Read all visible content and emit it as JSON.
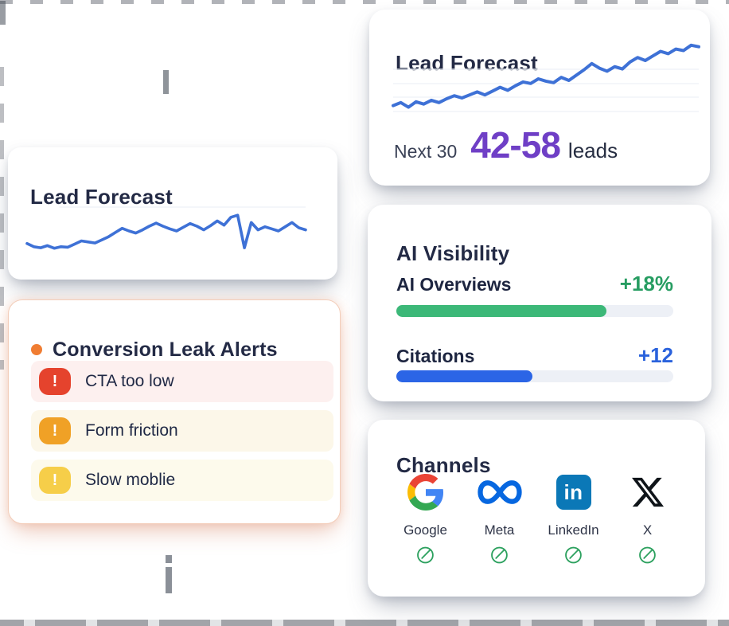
{
  "forecast_hero": {
    "title": "Lead Forecast",
    "next_label": "Next 30",
    "range_value": "42-58",
    "unit_label": "leads",
    "range_color": "#6f3fc6"
  },
  "forecast_mini": {
    "title": "Lead Forecast"
  },
  "alerts": {
    "title": "Conversion Leak Alerts",
    "bullet_color": "#f07d32",
    "items": [
      {
        "label": "CTA too low",
        "severity": "high",
        "icon": "exclamation-icon",
        "badge_color": "#e5432d",
        "row_bg": "#fdf0ef"
      },
      {
        "label": "Form friction",
        "severity": "medium",
        "icon": "exclamation-icon",
        "badge_color": "#f0a126",
        "row_bg": "#fcf7e9"
      },
      {
        "label": "Slow moblie",
        "severity": "low",
        "icon": "exclamation-icon",
        "badge_color": "#f6ce49",
        "row_bg": "#fdfaec"
      }
    ]
  },
  "ai_visibility": {
    "title": "AI Visibility",
    "track_color": "#edf0f6",
    "metrics": [
      {
        "label": "AI Overviews",
        "delta": "+18%",
        "percent": 76,
        "bar_color": "#3cb878",
        "delta_color": "#279d62"
      },
      {
        "label": "Citations",
        "delta": "+12",
        "percent": 49,
        "bar_color": "#2b65e6",
        "delta_color": "#2a62dc"
      }
    ]
  },
  "channels": {
    "title": "Channels",
    "status_color": "#2da15f",
    "items": [
      {
        "label": "Google",
        "icon": "google-logo-icon",
        "status": "connected"
      },
      {
        "label": "Meta",
        "icon": "meta-logo-icon",
        "status": "connected"
      },
      {
        "label": "LinkedIn",
        "icon": "linkedin-logo-icon",
        "status": "connected"
      },
      {
        "label": "X",
        "icon": "x-logo-icon",
        "status": "connected"
      }
    ]
  },
  "chart_data": [
    {
      "id": "hero_sparkline",
      "type": "line",
      "title": "Lead Forecast",
      "annotation": "Next 30: 42-58 leads",
      "line_color": "#3e71d6",
      "x_unit": "days",
      "ylim": [
        0,
        100
      ],
      "grid": true,
      "legend": "none",
      "values": [
        16,
        20,
        14,
        21,
        18,
        23,
        20,
        25,
        29,
        26,
        30,
        34,
        30,
        35,
        40,
        36,
        42,
        47,
        45,
        51,
        48,
        46,
        53,
        49,
        56,
        63,
        71,
        65,
        61,
        67,
        64,
        73,
        79,
        75,
        81,
        87,
        84,
        90,
        88,
        95,
        93
      ]
    },
    {
      "id": "mini_sparkline",
      "type": "line",
      "title": "Lead Forecast",
      "line_color": "#3e71d6",
      "x_unit": "days",
      "ylim": [
        0,
        100
      ],
      "grid": true,
      "legend": "none",
      "values": [
        20,
        14,
        12,
        16,
        11,
        14,
        13,
        19,
        25,
        23,
        21,
        27,
        33,
        41,
        49,
        44,
        40,
        46,
        53,
        59,
        53,
        48,
        44,
        51,
        58,
        53,
        46,
        54,
        63,
        55,
        70,
        74,
        12,
        60,
        46,
        52,
        48,
        44,
        52,
        60,
        50,
        46
      ]
    }
  ]
}
